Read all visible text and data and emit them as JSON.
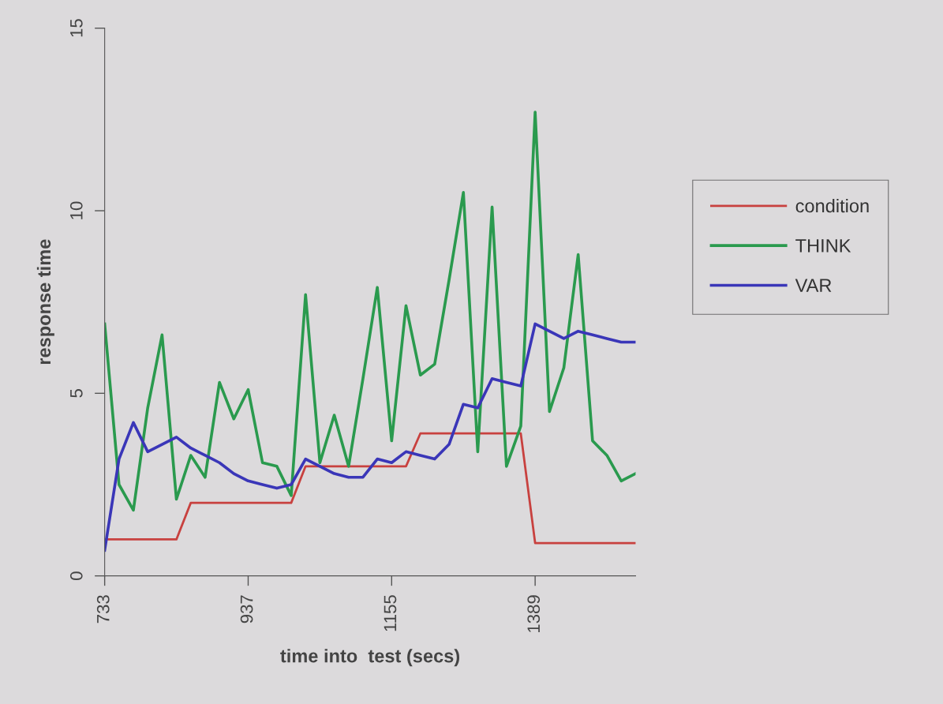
{
  "chart_data": {
    "type": "line",
    "xlabel": "time into  test (secs)",
    "ylabel": "response time",
    "categories": [
      "733",
      null,
      null,
      null,
      null,
      null,
      null,
      null,
      null,
      null,
      "937",
      null,
      null,
      null,
      null,
      null,
      null,
      null,
      null,
      null,
      "1155",
      null,
      null,
      null,
      null,
      null,
      null,
      null,
      null,
      null,
      "1389",
      null,
      null,
      null,
      null,
      null,
      null,
      null
    ],
    "series": [
      {
        "name": "condition",
        "color": "#c8413f",
        "values": [
          1,
          1,
          1,
          1,
          1,
          1,
          2,
          2,
          2,
          2,
          2,
          2,
          2,
          2,
          3,
          3,
          3,
          3,
          3,
          3,
          3,
          3,
          3.9,
          3.9,
          3.9,
          3.9,
          3.9,
          3.9,
          3.9,
          3.9,
          0.9,
          0.9,
          0.9,
          0.9,
          0.9,
          0.9,
          0.9,
          0.9
        ]
      },
      {
        "name": "THINK",
        "color": "#2a9a4e",
        "values": [
          6.9,
          2.5,
          1.8,
          4.6,
          6.6,
          2.1,
          3.3,
          2.7,
          5.3,
          4.3,
          5.1,
          3.1,
          3.0,
          2.2,
          7.7,
          3.1,
          4.4,
          3.0,
          5.4,
          7.9,
          3.7,
          7.4,
          5.5,
          5.8,
          8.1,
          10.5,
          3.4,
          10.1,
          3.0,
          4.1,
          12.7,
          4.5,
          5.7,
          8.8,
          3.7,
          3.3,
          2.6,
          2.8
        ]
      },
      {
        "name": "VAR",
        "color": "#3a36b8",
        "values": [
          0.7,
          3.2,
          4.2,
          3.4,
          3.6,
          3.8,
          3.5,
          3.3,
          3.1,
          2.8,
          2.6,
          2.5,
          2.4,
          2.5,
          3.2,
          3.0,
          2.8,
          2.7,
          2.7,
          3.2,
          3.1,
          3.4,
          3.3,
          3.2,
          3.6,
          4.7,
          4.6,
          5.4,
          5.3,
          5.2,
          6.9,
          6.7,
          6.5,
          6.7,
          6.6,
          6.5,
          6.4,
          6.4
        ]
      }
    ],
    "ylim": [
      0,
      15
    ],
    "yticks": [
      0,
      5,
      10,
      15
    ],
    "legend": "right",
    "grid": false,
    "marker": "none",
    "line_style": "solid"
  }
}
